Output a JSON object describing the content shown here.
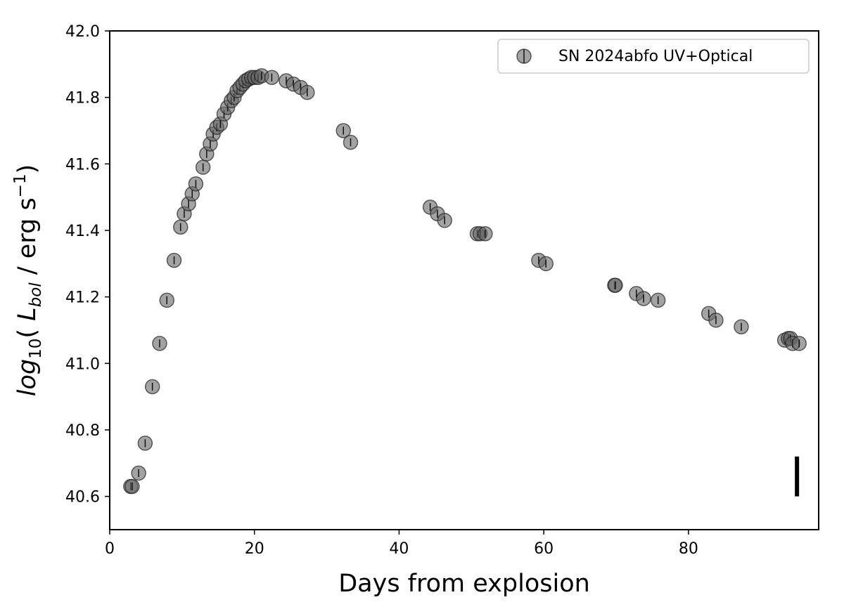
{
  "chart_data": {
    "type": "scatter",
    "title": "",
    "xlabel": "Days from explosion",
    "ylabel_parts": {
      "prefix": "log",
      "prefix_sub": "10",
      "open": "( ",
      "L": "L",
      "L_sub": "bol",
      "unit": " / erg s",
      "unit_sup": "−1",
      "close": ")"
    },
    "xlim": [
      0,
      98
    ],
    "ylim": [
      40.5,
      42.0
    ],
    "x_ticks": [
      0,
      20,
      40,
      60,
      80
    ],
    "y_ticks": [
      40.6,
      40.8,
      41.0,
      41.2,
      41.4,
      41.6,
      41.8,
      42.0
    ],
    "x_tick_labels": [
      "0",
      "20",
      "40",
      "60",
      "80"
    ],
    "y_tick_labels": [
      "40.6",
      "40.8",
      "41.0",
      "41.2",
      "41.4",
      "41.6",
      "41.8",
      "42.0"
    ],
    "grid": false,
    "legend": {
      "position": "top-right",
      "entries": [
        "SN 2024abfo UV+Optical"
      ]
    },
    "marker_color": "#666666",
    "marker_edge_color": "#222222",
    "marker_opacity": 0.6,
    "series": [
      {
        "name": "SN 2024abfo UV+Optical",
        "x": [
          2.9,
          3.1,
          4.0,
          4.9,
          5.9,
          6.9,
          7.9,
          8.9,
          9.8,
          10.3,
          10.9,
          11.4,
          11.9,
          12.9,
          13.4,
          13.9,
          14.3,
          14.8,
          15.3,
          15.8,
          16.3,
          16.8,
          17.2,
          17.6,
          18.0,
          18.4,
          18.8,
          19.2,
          19.6,
          20.0,
          20.5,
          21.0,
          22.4,
          24.4,
          25.4,
          26.4,
          27.3,
          32.3,
          33.3,
          44.3,
          45.3,
          46.3,
          50.8,
          51.2,
          51.9,
          59.3,
          60.3,
          69.8,
          69.9,
          72.8,
          73.8,
          75.8,
          82.8,
          83.8,
          87.3,
          93.3,
          93.8,
          94.1,
          94.4,
          95.3
        ],
        "y": [
          40.63,
          40.63,
          40.67,
          40.76,
          40.93,
          41.06,
          41.19,
          41.31,
          41.41,
          41.45,
          41.48,
          41.51,
          41.54,
          41.59,
          41.63,
          41.66,
          41.69,
          41.71,
          41.72,
          41.75,
          41.77,
          41.79,
          41.8,
          41.82,
          41.83,
          41.84,
          41.85,
          41.855,
          41.86,
          41.86,
          41.86,
          41.865,
          41.86,
          41.85,
          41.84,
          41.83,
          41.815,
          41.7,
          41.665,
          41.47,
          41.45,
          41.43,
          41.39,
          41.39,
          41.39,
          41.31,
          41.3,
          41.235,
          41.235,
          41.21,
          41.195,
          41.19,
          41.15,
          41.13,
          41.11,
          41.07,
          41.075,
          41.075,
          41.06,
          41.06
        ],
        "yerr": 0.012
      }
    ],
    "annotation": {
      "type": "error-scale-bar",
      "x": 95,
      "y_range": [
        40.6,
        40.72
      ]
    }
  }
}
